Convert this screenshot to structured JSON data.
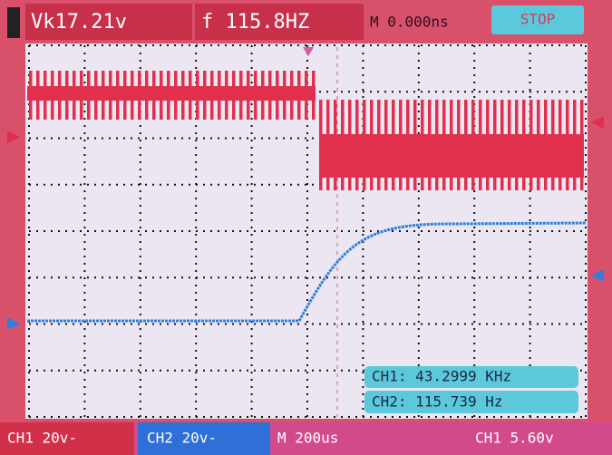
{
  "top_bar": {
    "amplitude": "Vk17.21v",
    "frequency": "f 115.8HZ",
    "time_offset": "M 0.000ns",
    "run_state": "STOP"
  },
  "measurements": [
    "CH1: 43.2999 KHz",
    "CH2: 115.739 Hz"
  ],
  "bottom_bar": {
    "ch1_scale": "CH1 20v-",
    "ch2_scale": "CH2 20v-",
    "timebase": "M 200us",
    "trigger": "CH1 5.60v"
  }
}
